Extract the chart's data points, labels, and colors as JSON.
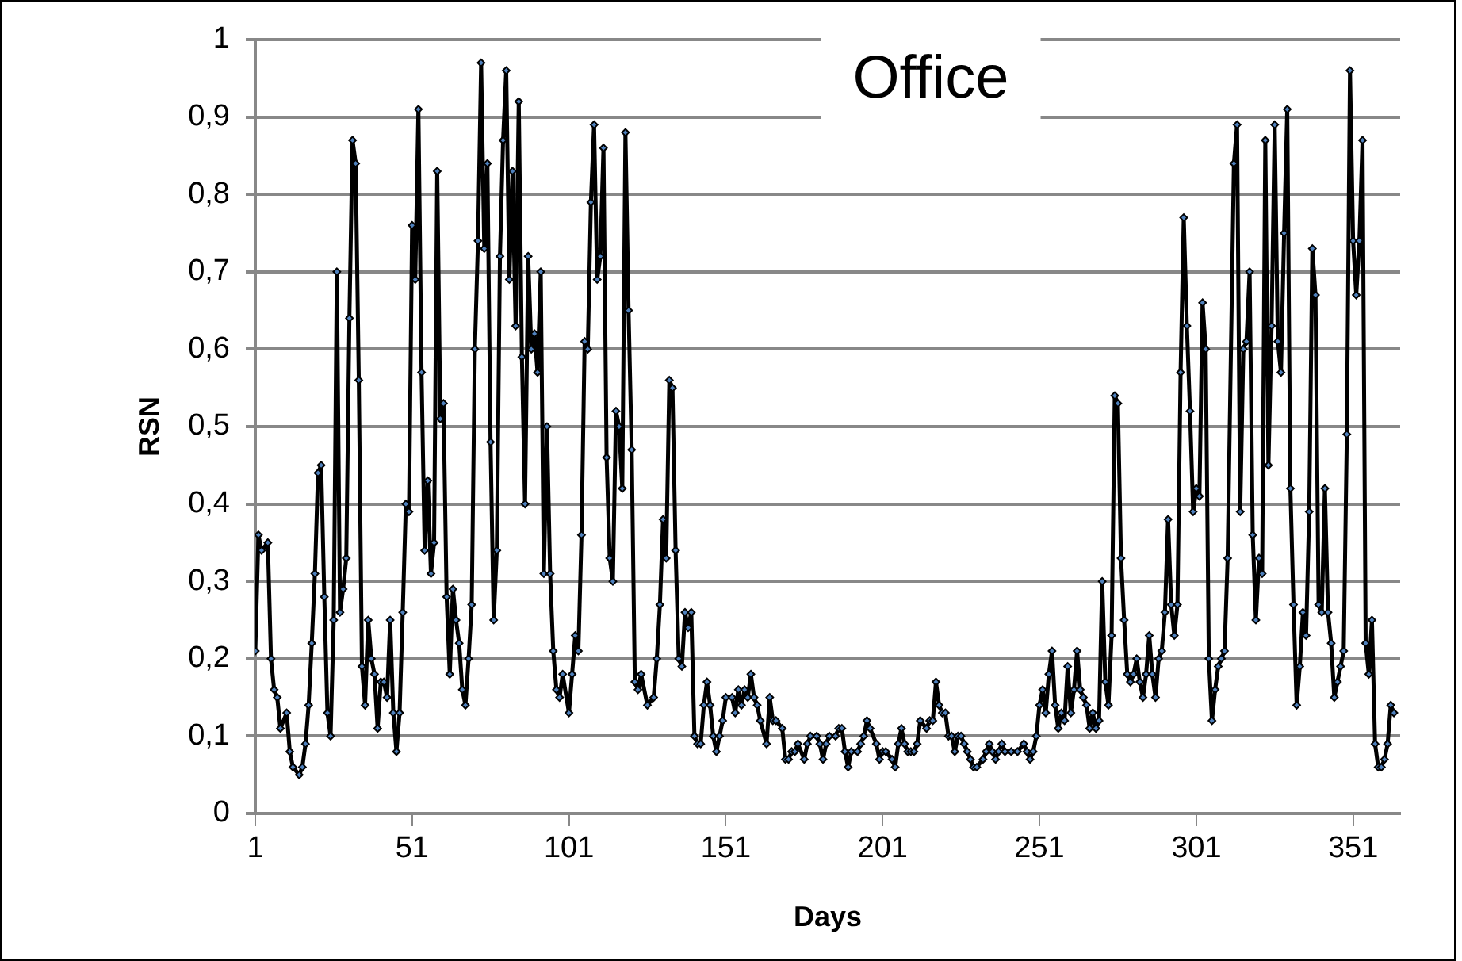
{
  "chart_data": {
    "type": "line",
    "title": "Office",
    "xlabel": "Days",
    "ylabel": "RSN",
    "xlim": [
      1,
      366
    ],
    "xticks": [
      1,
      51,
      101,
      151,
      201,
      251,
      301,
      351
    ],
    "ylim": [
      0,
      1
    ],
    "yticks": [
      0,
      {
        "value": 0.1,
        "label": "0,1"
      },
      {
        "value": 0.2,
        "label": "0,2"
      },
      {
        "value": 0.3,
        "label": "0,3"
      },
      {
        "value": 0.4,
        "label": "0,4"
      },
      {
        "value": 0.5,
        "label": "0,5"
      },
      {
        "value": 0.6,
        "label": "0,6"
      },
      {
        "value": 0.7,
        "label": "0,7"
      },
      {
        "value": 0.8,
        "label": "0,8"
      },
      {
        "value": 0.9,
        "label": "0,9"
      },
      1
    ],
    "grid": "y",
    "legend": false,
    "marker": "diamond",
    "line_style": "solid",
    "series": [
      {
        "color": "#000000",
        "x": [
          1,
          2,
          3,
          5,
          6,
          7,
          8,
          9,
          11,
          12,
          13,
          15,
          16,
          17,
          18,
          19,
          20,
          21,
          22,
          23,
          24,
          25,
          26,
          27,
          28,
          29,
          30,
          31,
          32,
          33,
          34,
          35,
          36,
          37,
          38,
          39,
          40,
          41,
          42,
          43,
          44,
          45,
          46,
          47,
          48,
          49,
          50,
          51,
          52,
          53,
          54,
          55,
          56,
          57,
          58,
          59,
          60,
          61,
          62,
          63,
          64,
          65,
          66,
          67,
          68,
          69,
          70,
          71,
          72,
          73,
          74,
          75,
          76,
          77,
          78,
          79,
          80,
          81,
          82,
          83,
          84,
          85,
          86,
          87,
          88,
          89,
          90,
          91,
          92,
          93,
          94,
          95,
          96,
          97,
          98,
          99,
          101,
          102,
          103,
          104,
          105,
          106,
          107,
          108,
          109,
          110,
          111,
          112,
          113,
          114,
          115,
          116,
          117,
          118,
          119,
          120,
          121,
          122,
          123,
          124,
          126,
          128,
          129,
          130,
          131,
          132,
          133,
          134,
          135,
          136,
          137,
          138,
          139,
          140,
          141,
          142,
          143,
          144,
          145,
          146,
          147,
          148,
          149,
          150,
          151,
          153,
          154,
          155,
          156,
          157,
          158,
          159,
          160,
          161,
          162,
          164,
          165,
          166,
          167,
          169,
          170,
          171,
          172,
          173,
          174,
          176,
          177,
          178,
          180,
          181,
          182,
          183,
          184,
          186,
          187,
          188,
          189,
          190,
          191,
          193,
          194,
          195,
          196,
          197,
          199,
          200,
          201,
          202,
          204,
          205,
          206,
          207,
          208,
          209,
          210,
          211,
          212,
          213,
          215,
          216,
          217,
          218,
          219,
          220,
          221,
          222,
          223,
          224,
          225,
          226,
          227,
          228,
          229,
          230,
          231,
          233,
          234,
          235,
          236,
          237,
          238,
          239,
          240,
          242,
          244,
          246,
          247,
          248,
          249,
          250,
          251,
          252,
          253,
          254,
          255,
          256,
          257,
          258,
          259,
          260,
          261,
          262,
          263,
          264,
          265,
          266,
          267,
          268,
          269,
          270,
          271,
          272,
          273,
          274,
          275,
          276,
          277,
          278,
          279,
          280,
          281,
          282,
          283,
          284,
          285,
          286,
          287,
          288,
          289,
          290,
          291,
          292,
          293,
          294,
          295,
          296,
          297,
          298,
          299,
          300,
          301,
          302,
          303,
          304,
          305,
          306,
          307,
          308,
          309,
          310,
          311,
          313,
          314,
          315,
          316,
          317,
          318,
          319,
          320,
          321,
          322,
          323,
          324,
          325,
          326,
          327,
          328,
          329,
          330,
          331,
          332,
          333,
          334,
          335,
          336,
          337,
          338,
          339,
          340,
          341,
          342,
          343,
          344,
          345,
          346,
          347,
          348,
          349,
          350,
          351,
          352,
          353,
          354,
          355,
          356,
          357,
          358,
          359,
          360,
          361,
          362,
          363,
          364
        ],
        "values": [
          0.21,
          0.36,
          0.34,
          0.35,
          0.2,
          0.16,
          0.15,
          0.11,
          0.13,
          0.08,
          0.06,
          0.05,
          0.06,
          0.09,
          0.14,
          0.22,
          0.31,
          0.44,
          0.45,
          0.28,
          0.13,
          0.1,
          0.25,
          0.7,
          0.26,
          0.29,
          0.33,
          0.64,
          0.87,
          0.84,
          0.56,
          0.19,
          0.14,
          0.25,
          0.2,
          0.18,
          0.11,
          0.17,
          0.17,
          0.15,
          0.25,
          0.13,
          0.08,
          0.13,
          0.26,
          0.4,
          0.39,
          0.76,
          0.69,
          0.91,
          0.57,
          0.34,
          0.43,
          0.31,
          0.35,
          0.83,
          0.51,
          0.53,
          0.28,
          0.18,
          0.29,
          0.25,
          0.22,
          0.16,
          0.14,
          0.2,
          0.27,
          0.6,
          0.74,
          0.97,
          0.73,
          0.84,
          0.48,
          0.25,
          0.34,
          0.72,
          0.87,
          0.96,
          0.69,
          0.83,
          0.63,
          0.92,
          0.59,
          0.4,
          0.72,
          0.6,
          0.62,
          0.57,
          0.7,
          0.31,
          0.5,
          0.31,
          0.21,
          0.16,
          0.15,
          0.18,
          0.13,
          0.18,
          0.23,
          0.21,
          0.36,
          0.61,
          0.6,
          0.79,
          0.89,
          0.69,
          0.72,
          0.86,
          0.46,
          0.33,
          0.3,
          0.52,
          0.5,
          0.42,
          0.88,
          0.65,
          0.47,
          0.17,
          0.16,
          0.18,
          0.14,
          0.15,
          0.2,
          0.27,
          0.38,
          0.33,
          0.56,
          0.55,
          0.34,
          0.2,
          0.19,
          0.26,
          0.24,
          0.26,
          0.1,
          0.09,
          0.09,
          0.14,
          0.17,
          0.14,
          0.1,
          0.08,
          0.1,
          0.12,
          0.15,
          0.15,
          0.13,
          0.16,
          0.14,
          0.16,
          0.15,
          0.18,
          0.15,
          0.14,
          0.12,
          0.09,
          0.15,
          0.12,
          0.12,
          0.11,
          0.07,
          0.07,
          0.08,
          0.08,
          0.09,
          0.07,
          0.09,
          0.1,
          0.1,
          0.09,
          0.07,
          0.09,
          0.1,
          0.1,
          0.11,
          0.11,
          0.08,
          0.06,
          0.08,
          0.08,
          0.09,
          0.1,
          0.12,
          0.11,
          0.09,
          0.07,
          0.08,
          0.08,
          0.07,
          0.06,
          0.09,
          0.11,
          0.09,
          0.08,
          0.08,
          0.08,
          0.09,
          0.12,
          0.11,
          0.12,
          0.12,
          0.17,
          0.14,
          0.13,
          0.13,
          0.1,
          0.1,
          0.08,
          0.1,
          0.1,
          0.09,
          0.08,
          0.07,
          0.06,
          0.06,
          0.07,
          0.08,
          0.09,
          0.08,
          0.07,
          0.08,
          0.09,
          0.08,
          0.08,
          0.08,
          0.09,
          0.08,
          0.07,
          0.08,
          0.1,
          0.14,
          0.16,
          0.13,
          0.18,
          0.21,
          0.14,
          0.11,
          0.13,
          0.12,
          0.19,
          0.13,
          0.16,
          0.21,
          0.16,
          0.15,
          0.14,
          0.11,
          0.13,
          0.11,
          0.12,
          0.3,
          0.17,
          0.14,
          0.23,
          0.54,
          0.53,
          0.33,
          0.25,
          0.18,
          0.17,
          0.18,
          0.2,
          0.17,
          0.15,
          0.18,
          0.23,
          0.18,
          0.15,
          0.2,
          0.21,
          0.26,
          0.38,
          0.27,
          0.23,
          0.27,
          0.57,
          0.77,
          0.63,
          0.52,
          0.39,
          0.42,
          0.41,
          0.66,
          0.6,
          0.2,
          0.12,
          0.16,
          0.19,
          0.2,
          0.21,
          0.33,
          0.84,
          0.89,
          0.39,
          0.6,
          0.61,
          0.7,
          0.36,
          0.25,
          0.33,
          0.31,
          0.87,
          0.45,
          0.63,
          0.89,
          0.61,
          0.57,
          0.75,
          0.91,
          0.42,
          0.27,
          0.14,
          0.19,
          0.26,
          0.23,
          0.39,
          0.73,
          0.67,
          0.27,
          0.26,
          0.42,
          0.26,
          0.22,
          0.15,
          0.17,
          0.19,
          0.21,
          0.49,
          0.96,
          0.74,
          0.67,
          0.74,
          0.87,
          0.22,
          0.18,
          0.25,
          0.09,
          0.06,
          0.06,
          0.07,
          0.09,
          0.14,
          0.13
        ]
      }
    ]
  }
}
